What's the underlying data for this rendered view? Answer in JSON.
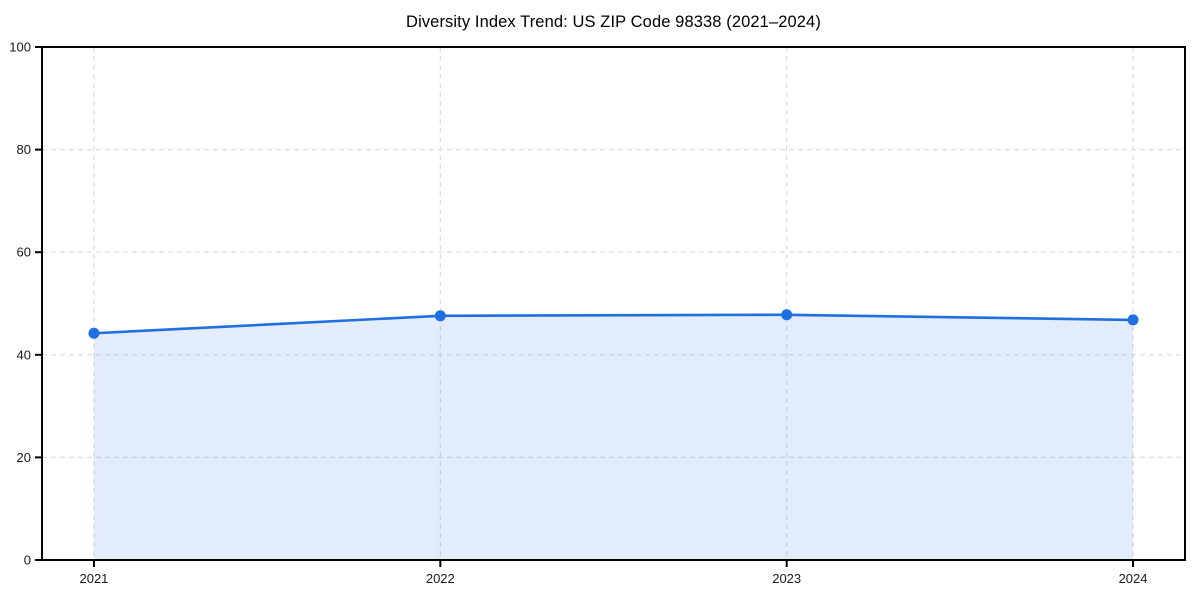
{
  "chart_data": {
    "type": "area",
    "title": "Diversity Index Trend: US ZIP Code 98338 (2021–2024)",
    "x": [
      2021,
      2022,
      2023,
      2024
    ],
    "values": [
      44.2,
      47.6,
      47.8,
      46.8
    ],
    "xticks": [
      2021,
      2022,
      2023,
      2024
    ],
    "yticks": [
      0,
      20,
      40,
      60,
      80,
      100
    ],
    "xlim": [
      2020.85,
      2024.15
    ],
    "ylim": [
      0,
      100
    ],
    "grid": true,
    "grid_style": "dashed",
    "legend": false,
    "marker": "circle",
    "colors": {
      "line": "#1f6fe0",
      "fill": "#1f6fe0",
      "fill_opacity": 0.13,
      "grid": "#dcdcdc",
      "spine": "#000000",
      "text": "#1a1a1a",
      "background": "#ffffff"
    }
  }
}
